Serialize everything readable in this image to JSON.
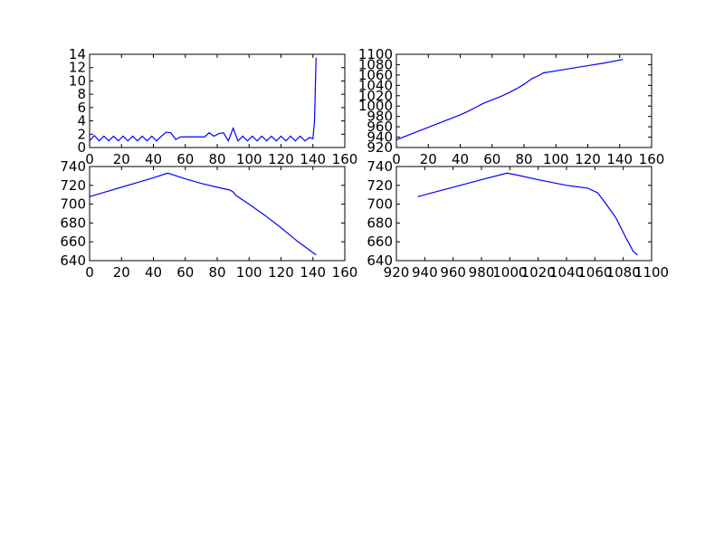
{
  "chart_data": [
    {
      "type": "line",
      "color": "#0000ff",
      "x": [
        0,
        3,
        6,
        9,
        12,
        15,
        18,
        21,
        24,
        27,
        30,
        33,
        36,
        39,
        42,
        45,
        48,
        51,
        54,
        57,
        60,
        63,
        66,
        69,
        72,
        75,
        78,
        81,
        84,
        87,
        90,
        93,
        96,
        99,
        102,
        105,
        108,
        111,
        114,
        117,
        120,
        123,
        126,
        129,
        132,
        135,
        138,
        140,
        141,
        142
      ],
      "values": [
        1.0,
        1.8,
        1.0,
        1.7,
        1.0,
        1.7,
        1.0,
        1.7,
        1.0,
        1.7,
        1.0,
        1.7,
        1.0,
        1.7,
        1.0,
        1.7,
        2.3,
        2.2,
        1.2,
        1.6,
        1.6,
        1.6,
        1.6,
        1.6,
        1.6,
        2.2,
        1.7,
        2.1,
        2.2,
        1.0,
        2.9,
        1.0,
        1.7,
        1.0,
        1.7,
        1.0,
        1.7,
        1.0,
        1.7,
        1.0,
        1.7,
        1.0,
        1.7,
        1.0,
        1.7,
        1.0,
        1.5,
        1.3,
        4.0,
        13.5
      ],
      "xlim": [
        0,
        160
      ],
      "ylim": [
        0,
        14
      ],
      "xticks": [
        0,
        20,
        40,
        60,
        80,
        100,
        120,
        140,
        160
      ],
      "yticks": [
        0,
        2,
        4,
        6,
        8,
        10,
        12,
        14
      ]
    },
    {
      "type": "line",
      "color": "#0000ff",
      "x": [
        0,
        10,
        20,
        30,
        40,
        45,
        50,
        55,
        60,
        65,
        70,
        75,
        80,
        85,
        90,
        92,
        100,
        110,
        120,
        130,
        142
      ],
      "values": [
        935,
        947,
        959,
        971,
        983,
        990,
        998,
        1006,
        1012,
        1018,
        1025,
        1033,
        1042,
        1053,
        1060,
        1064,
        1068,
        1073,
        1078,
        1083,
        1090
      ],
      "xlim": [
        0,
        160
      ],
      "ylim": [
        920,
        1100
      ],
      "xticks": [
        0,
        20,
        40,
        60,
        80,
        100,
        120,
        140,
        160
      ],
      "yticks": [
        920,
        940,
        960,
        980,
        1000,
        1020,
        1040,
        1060,
        1080,
        1100
      ]
    },
    {
      "type": "line",
      "color": "#0000ff",
      "x": [
        0,
        10,
        20,
        30,
        40,
        49,
        60,
        70,
        80,
        88,
        90,
        92,
        100,
        110,
        120,
        130,
        142
      ],
      "values": [
        708,
        713,
        718,
        723,
        728,
        733,
        727,
        722,
        718,
        715,
        713,
        709,
        700,
        688,
        675,
        661,
        646
      ],
      "xlim": [
        0,
        160
      ],
      "ylim": [
        640,
        740
      ],
      "xticks": [
        0,
        20,
        40,
        60,
        80,
        100,
        120,
        140,
        160
      ],
      "yticks": [
        640,
        660,
        680,
        700,
        720,
        740
      ]
    },
    {
      "type": "line",
      "color": "#0000ff",
      "x": [
        935,
        950,
        965,
        980,
        998,
        1005,
        1020,
        1040,
        1055,
        1062,
        1068,
        1075,
        1082,
        1087,
        1090
      ],
      "values": [
        708,
        714,
        720,
        726,
        733,
        731,
        726,
        720,
        717,
        712,
        700,
        685,
        664,
        650,
        646
      ],
      "xlim": [
        920,
        1100
      ],
      "ylim": [
        640,
        740
      ],
      "xticks": [
        920,
        940,
        960,
        980,
        1000,
        1020,
        1040,
        1060,
        1080,
        1100
      ],
      "yticks": [
        640,
        660,
        680,
        700,
        720,
        740
      ]
    }
  ]
}
